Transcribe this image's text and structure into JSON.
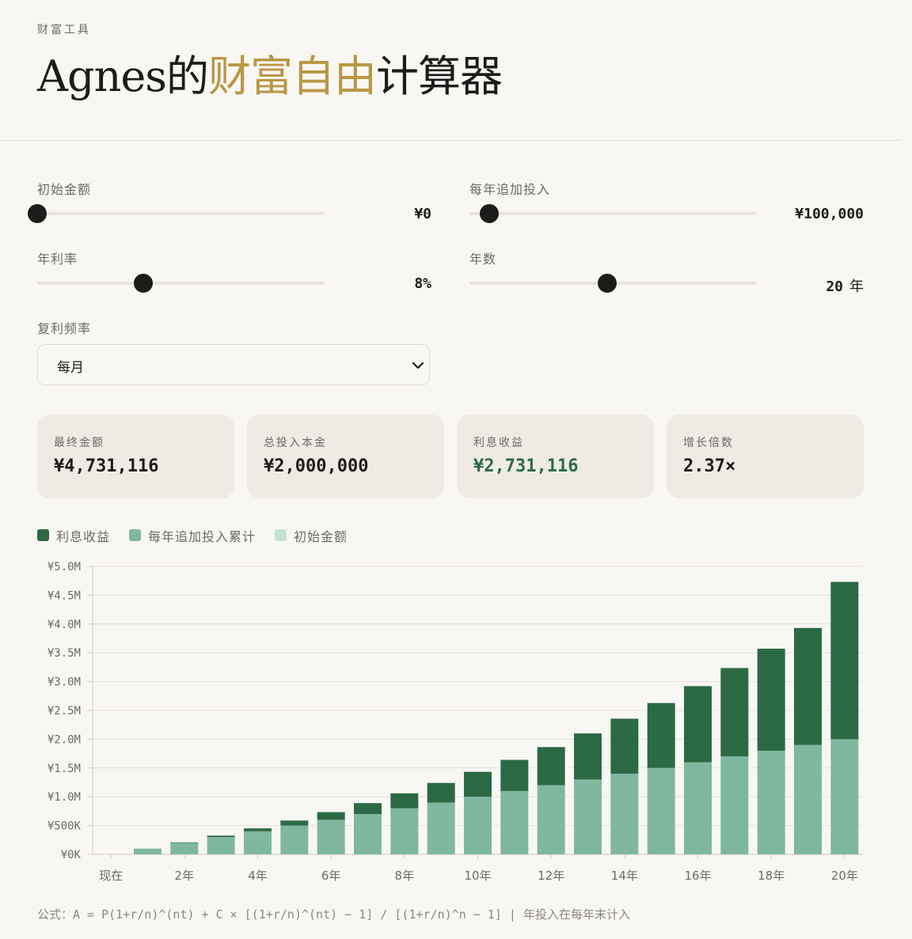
{
  "header": {
    "eyebrow": "财富工具",
    "title_prefix": "Agnes的",
    "title_accent": "财富自由",
    "title_suffix": "计算器"
  },
  "controls": {
    "initial_amount": {
      "label": "初始金额",
      "value": "¥0",
      "level": 0
    },
    "annual_contribution": {
      "label": "每年追加投入",
      "value": "¥100,000",
      "level": 0.07
    },
    "annual_rate": {
      "label": "年利率",
      "value": "8%",
      "level": 0.37
    },
    "years": {
      "label": "年数",
      "value": "20",
      "unit": "年",
      "level": 0.48
    },
    "compound_frequency": {
      "label": "复利频率",
      "selected": "每月"
    }
  },
  "stats": [
    {
      "label": "最终金额",
      "value": "¥4,731,116",
      "highlight": false
    },
    {
      "label": "总投入本金",
      "value": "¥2,000,000",
      "highlight": false
    },
    {
      "label": "利息收益",
      "value": "¥2,731,116",
      "highlight": true
    },
    {
      "label": "增长倍数",
      "value": "2.37×",
      "highlight": false
    }
  ],
  "legend": [
    {
      "label": "利息收益",
      "color": "#2b6a45"
    },
    {
      "label": "每年追加投入累计",
      "color": "#7fb89e"
    },
    {
      "label": "初始金额",
      "color": "#c7e2d5"
    }
  ],
  "chart_data": {
    "type": "bar",
    "stacked": true,
    "x": [
      "现在",
      "1年",
      "2年",
      "3年",
      "4年",
      "5年",
      "6年",
      "7年",
      "8年",
      "9年",
      "10年",
      "11年",
      "12年",
      "13年",
      "14年",
      "15年",
      "16年",
      "17年",
      "18年",
      "19年",
      "20年"
    ],
    "x_tick_labels": [
      "现在",
      "2年",
      "4年",
      "6年",
      "8年",
      "10年",
      "12年",
      "14年",
      "16年",
      "18年",
      "20年"
    ],
    "y_tick_labels": [
      "¥0K",
      "¥500K",
      "¥1.0M",
      "¥1.5M",
      "¥2.0M",
      "¥2.5M",
      "¥3.0M",
      "¥3.5M",
      "¥4.0M",
      "¥4.5M",
      "¥5.0M"
    ],
    "ylim": [
      0,
      5000000
    ],
    "grid": true,
    "legend_position": "top-left",
    "series": [
      {
        "name": "初始金额",
        "color": "#c7e2d5",
        "values": [
          0,
          0,
          0,
          0,
          0,
          0,
          0,
          0,
          0,
          0,
          0,
          0,
          0,
          0,
          0,
          0,
          0,
          0,
          0,
          0,
          0
        ]
      },
      {
        "name": "每年追加投入累计",
        "color": "#7fb89e",
        "values": [
          0,
          100000,
          200000,
          300000,
          400000,
          500000,
          600000,
          700000,
          800000,
          900000,
          1000000,
          1100000,
          1200000,
          1300000,
          1400000,
          1500000,
          1600000,
          1700000,
          1800000,
          1900000,
          2000000
        ]
      },
      {
        "name": "利息收益",
        "color": "#2b6a45",
        "values": [
          0,
          0,
          8300,
          25300,
          51300,
          86900,
          133000,
          190000,
          259000,
          340000,
          433000,
          541000,
          663000,
          800000,
          956000,
          1128000,
          1321000,
          1535000,
          1771000,
          2031000,
          2731116
        ]
      }
    ]
  },
  "footnote": "公式：A = P(1+r/n)^(nt) + C × [(1+r/n)^(nt) − 1] / [(1+r/n)^n − 1]  |  年投入在每年末计入"
}
